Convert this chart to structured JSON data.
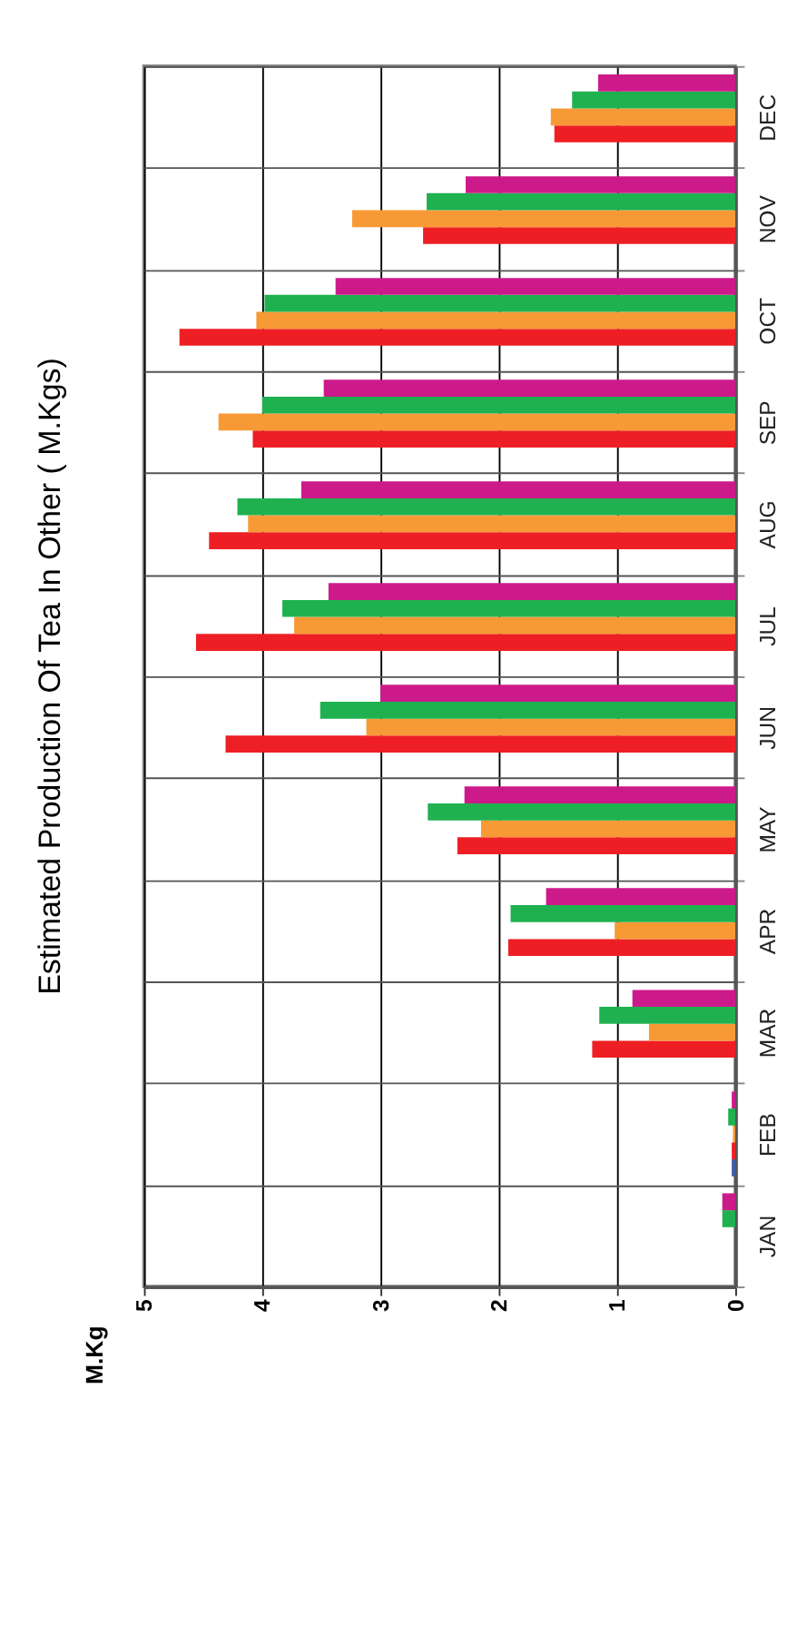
{
  "chart_data": {
    "type": "bar",
    "orientation": "horizontal",
    "title": "Estimated Production Of Tea In Other ( M.Kgs)",
    "annotations": [
      "M.Kg"
    ],
    "categories": [
      "DEC",
      "NOV",
      "OCT",
      "SEP",
      "AUG",
      "JUL",
      "JUN",
      "MAY",
      "APR",
      "MAR",
      "FEB",
      "JAN"
    ],
    "series": [
      {
        "color": "#3f5aa8",
        "values": [
          null,
          null,
          null,
          null,
          null,
          null,
          null,
          null,
          null,
          null,
          0.03,
          null
        ]
      },
      {
        "color": "#ee1f24",
        "values": [
          1.53,
          2.64,
          4.7,
          4.08,
          4.45,
          4.56,
          4.31,
          2.35,
          1.92,
          1.21,
          0.03,
          null
        ]
      },
      {
        "color": "#f79a35",
        "values": [
          1.56,
          3.24,
          4.05,
          4.37,
          4.12,
          3.73,
          3.12,
          2.15,
          1.02,
          0.73,
          0.02,
          null
        ]
      },
      {
        "color": "#1fb150",
        "values": [
          1.38,
          2.61,
          3.98,
          4.0,
          4.21,
          3.83,
          3.51,
          2.6,
          1.9,
          1.15,
          0.06,
          0.11
        ]
      },
      {
        "color": "#cd1a8a",
        "values": [
          1.16,
          2.28,
          3.38,
          3.48,
          3.67,
          3.44,
          3.0,
          2.29,
          1.6,
          0.87,
          0.03,
          0.11
        ]
      }
    ],
    "xlim": [
      5,
      0
    ],
    "xticks": [
      5,
      4,
      3,
      2,
      1,
      0
    ],
    "grid": true
  }
}
